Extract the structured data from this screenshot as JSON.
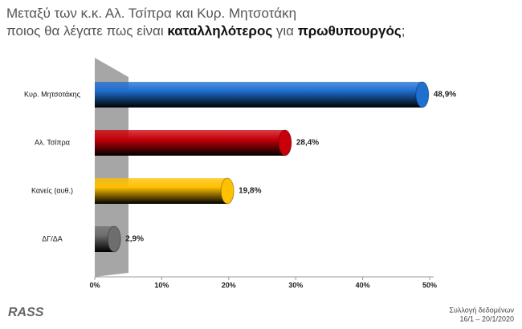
{
  "chart_data": {
    "type": "bar",
    "orientation": "horizontal",
    "title_lines": [
      [
        {
          "text": "Μεταξύ των κ.κ. Αλ. Τσίπρα και Κυρ. Μητσοτάκη",
          "bold": false
        }
      ],
      [
        {
          "text": "ποιος θα λέγατε πως είναι ",
          "bold": false
        },
        {
          "text": "καταλληλότερος",
          "bold": true
        },
        {
          "text": " για ",
          "bold": false
        },
        {
          "text": "πρωθυπουργός",
          "bold": true
        },
        {
          "text": ";",
          "bold": false
        }
      ]
    ],
    "categories": [
      "Κυρ. Μητσοτάκης",
      "Αλ. Τσίπρα",
      "Κανείς (αυθ.)",
      "ΔΓ/ΔΑ"
    ],
    "values": [
      48.9,
      28.4,
      19.8,
      2.9
    ],
    "value_labels": [
      "48,9%",
      "28,4%",
      "19,8%",
      "2,9%"
    ],
    "colors": [
      "#1f6fd0",
      "#c8000a",
      "#ffc000",
      "#6e6e6e"
    ],
    "xlim": [
      0,
      50
    ],
    "xticks": [
      {
        "value": 0,
        "label": "0%"
      },
      {
        "value": 10,
        "label": "10%"
      },
      {
        "value": 20,
        "label": "20%"
      },
      {
        "value": 30,
        "label": "30%"
      },
      {
        "value": 40,
        "label": "40%"
      },
      {
        "value": 50,
        "label": "50%"
      }
    ],
    "logo": "RASS",
    "footer_lines": [
      "Συλλογή δεδομένων",
      "16/1 – 20/1/2020"
    ]
  }
}
